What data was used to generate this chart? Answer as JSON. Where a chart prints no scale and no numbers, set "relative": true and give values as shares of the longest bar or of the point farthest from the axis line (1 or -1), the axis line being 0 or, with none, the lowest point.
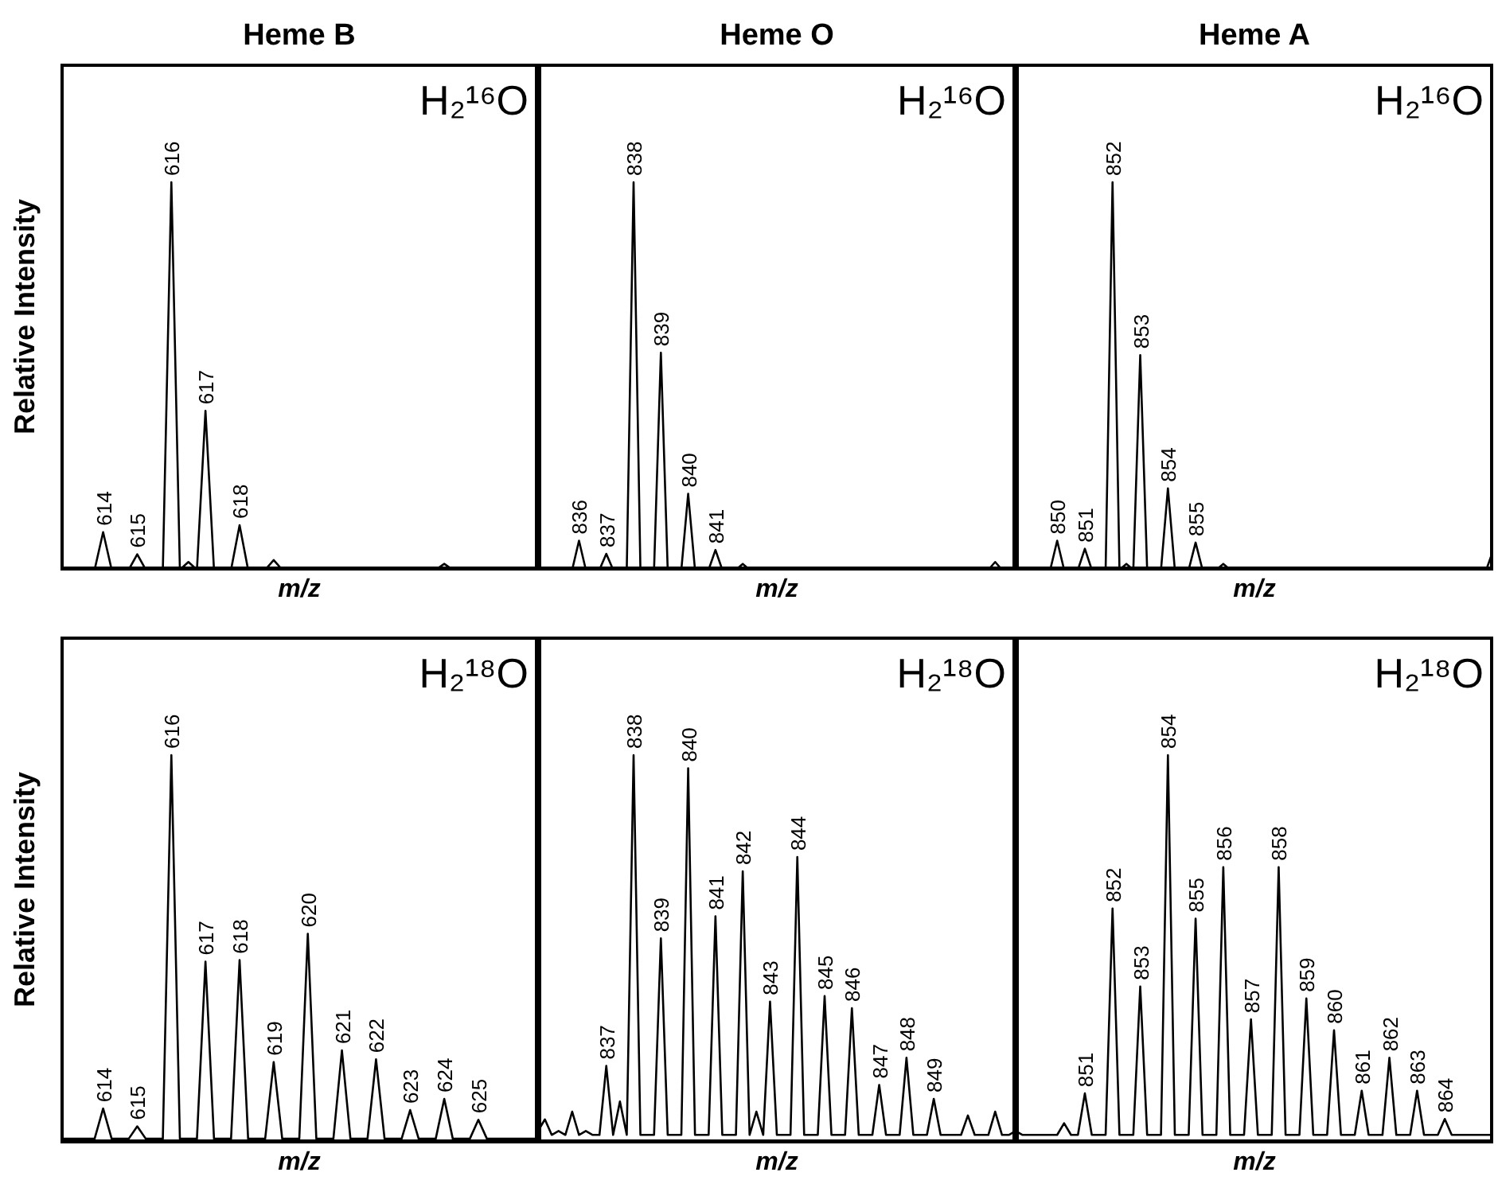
{
  "chart_data": [
    {
      "type": "line",
      "title": "Heme B",
      "xlabel": "m/z",
      "ylabel": "Relative Intensity",
      "relative": true,
      "color": "#000000",
      "annotations": [
        "H₂¹⁶O",
        {
          "text": "614",
          "y": 0.097
        },
        {
          "text": "615",
          "y": 0.04
        },
        {
          "text": "616",
          "y": 1
        },
        {
          "text": "617",
          "y": 0.41
        },
        {
          "text": "618",
          "y": 0.115
        }
      ],
      "categories": [
        null,
        null,
        null,
        null,
        null,
        null,
        null,
        null,
        null,
        null,
        null,
        null,
        null,
        null,
        null,
        null,
        null,
        null,
        null,
        null,
        null,
        null,
        null,
        null,
        null,
        null,
        null,
        null,
        null,
        null,
        null,
        null,
        null,
        null,
        null,
        null,
        null,
        null,
        null,
        null,
        null,
        null,
        null,
        null,
        null,
        null,
        null,
        null,
        null,
        null,
        null,
        null,
        null,
        null,
        null,
        null,
        null
      ],
      "values": [
        0,
        0,
        0,
        0,
        0,
        0.097,
        0,
        0,
        0,
        0.04,
        0,
        0,
        0,
        1,
        0,
        0.02,
        0,
        0.41,
        0,
        0,
        0,
        0.115,
        0,
        0,
        0,
        0.025,
        0,
        0,
        0,
        0,
        0,
        0,
        0,
        0,
        0,
        0,
        0,
        0,
        0,
        0,
        0,
        0,
        0,
        0,
        0,
        0.015,
        0,
        0,
        0,
        0,
        0,
        0,
        0,
        0,
        0,
        0,
        0
      ]
    },
    {
      "type": "line",
      "title": "Heme O",
      "xlabel": "m/z",
      "relative": true,
      "color": "#000000",
      "annotations": [
        "H₂¹⁶O",
        {
          "text": "836",
          "y": 0.075
        },
        {
          "text": "837",
          "y": 0.041
        },
        {
          "text": "838",
          "y": 1
        },
        {
          "text": "839",
          "y": 0.56
        },
        {
          "text": "840",
          "y": 0.196
        },
        {
          "text": "841",
          "y": 0.051
        }
      ],
      "categories": [
        null,
        null,
        null,
        null,
        null,
        null,
        null,
        null,
        null,
        null,
        null,
        null,
        null,
        null,
        null,
        null,
        null,
        null,
        null,
        null,
        null,
        null,
        null,
        null,
        null,
        null,
        null,
        null,
        null,
        null,
        null,
        null,
        null,
        null,
        null,
        null,
        null,
        null,
        null,
        null,
        null,
        null,
        null,
        null,
        null,
        null,
        null,
        null,
        null,
        null,
        null,
        null,
        null,
        null,
        null,
        null,
        null,
        null,
        null,
        null,
        null,
        null,
        null,
        null,
        null,
        null,
        null,
        null,
        null,
        null,
        null
      ],
      "values": [
        0,
        0,
        0,
        0,
        0,
        0,
        0.075,
        0,
        0,
        0,
        0.041,
        0,
        0,
        0,
        1,
        0,
        0,
        0,
        0.56,
        0,
        0,
        0,
        0.196,
        0,
        0,
        0,
        0.051,
        0,
        0,
        0,
        0.015,
        0,
        0,
        0,
        0,
        0,
        0,
        0,
        0,
        0,
        0,
        0,
        0,
        0,
        0,
        0,
        0,
        0,
        0,
        0,
        0,
        0,
        0,
        0,
        0,
        0,
        0,
        0,
        0,
        0,
        0,
        0,
        0,
        0,
        0,
        0,
        0,
        0.02,
        0,
        0,
        0
      ]
    },
    {
      "type": "line",
      "title": "Heme A",
      "xlabel": "m/z",
      "relative": true,
      "color": "#000000",
      "annotations": [
        "H₂¹⁶O",
        {
          "text": "850",
          "y": 0.075
        },
        {
          "text": "851",
          "y": 0.054
        },
        {
          "text": "852",
          "y": 1
        },
        {
          "text": "853",
          "y": 0.554
        },
        {
          "text": "854",
          "y": 0.21
        },
        {
          "text": "855",
          "y": 0.07
        }
      ],
      "categories": [
        null,
        null,
        null,
        null,
        null,
        null,
        null,
        null,
        null,
        null,
        null,
        null,
        null,
        null,
        null,
        null,
        null,
        null,
        null,
        null,
        null,
        null,
        null,
        null,
        null,
        null,
        null,
        null,
        null,
        null,
        null,
        null,
        null,
        null,
        null,
        null,
        null,
        null,
        null,
        null,
        null,
        null,
        null,
        null,
        null,
        null,
        null,
        null,
        null,
        null,
        null,
        null,
        null,
        null,
        null,
        null,
        null,
        null,
        null,
        null,
        null,
        null,
        null,
        null,
        null,
        null,
        null,
        null,
        null,
        null
      ],
      "values": [
        0.01,
        0,
        0,
        0,
        0,
        0,
        0.075,
        0,
        0,
        0,
        0.054,
        0,
        0,
        0,
        1,
        0,
        0.015,
        0,
        0.554,
        0,
        0,
        0,
        0.21,
        0,
        0,
        0,
        0.07,
        0,
        0,
        0,
        0.015,
        0,
        0,
        0,
        0,
        0,
        0,
        0,
        0,
        0,
        0,
        0,
        0,
        0,
        0,
        0,
        0,
        0,
        0,
        0,
        0,
        0,
        0,
        0,
        0,
        0,
        0,
        0,
        0,
        0,
        0,
        0,
        0,
        0,
        0,
        0,
        0,
        0,
        0,
        0.05
      ]
    },
    {
      "type": "line",
      "xlabel": "m/z",
      "ylabel": "Relative Intensity",
      "relative": true,
      "color": "#000000",
      "annotations": [
        "H₂¹⁸O",
        {
          "text": "614",
          "y": 0.088
        },
        {
          "text": "615",
          "y": 0.042
        },
        {
          "text": "616",
          "y": 1
        },
        {
          "text": "617",
          "y": 0.467
        },
        {
          "text": "618",
          "y": 0.471
        },
        {
          "text": "619",
          "y": 0.208
        },
        {
          "text": "620",
          "y": 0.539
        },
        {
          "text": "621",
          "y": 0.238
        },
        {
          "text": "622",
          "y": 0.215
        },
        {
          "text": "623",
          "y": 0.084
        },
        {
          "text": "624",
          "y": 0.113
        },
        {
          "text": "625",
          "y": 0.059
        }
      ],
      "categories": [
        null,
        null,
        null,
        null,
        null,
        null,
        null,
        null,
        null,
        null,
        null,
        null,
        null,
        null,
        null,
        null,
        null,
        null,
        null,
        null,
        null,
        null,
        null,
        null,
        null,
        null,
        null,
        null,
        null,
        null,
        null,
        null,
        null,
        null,
        null,
        null,
        null,
        null,
        null,
        null,
        null,
        null,
        null,
        null,
        null,
        null,
        null,
        null,
        null,
        null,
        null,
        null,
        null,
        null,
        null,
        null,
        null
      ],
      "values": [
        0.01,
        0.01,
        0.01,
        0.01,
        0.01,
        0.088,
        0.01,
        0.01,
        0.01,
        0.042,
        0.01,
        0.01,
        0.01,
        1,
        0.01,
        0.01,
        0.01,
        0.467,
        0.01,
        0.01,
        0.01,
        0.471,
        0.01,
        0.01,
        0.01,
        0.208,
        0.01,
        0.01,
        0.01,
        0.539,
        0.01,
        0.01,
        0.01,
        0.238,
        0.01,
        0.01,
        0.01,
        0.215,
        0.01,
        0.01,
        0.01,
        0.084,
        0.01,
        0.01,
        0.01,
        0.113,
        0.01,
        0.01,
        0.01,
        0.059,
        0.01,
        0.01,
        0.01,
        0.01,
        0.01,
        0.01,
        0.01
      ]
    },
    {
      "type": "line",
      "xlabel": "m/z",
      "relative": true,
      "color": "#000000",
      "annotations": [
        "H₂¹⁸O",
        {
          "text": "837",
          "y": 0.198
        },
        {
          "text": "838",
          "y": 1
        },
        {
          "text": "839",
          "y": 0.527
        },
        {
          "text": "840",
          "y": 0.966
        },
        {
          "text": "841",
          "y": 0.584
        },
        {
          "text": "842",
          "y": 0.7
        },
        {
          "text": "843",
          "y": 0.364
        },
        {
          "text": "844",
          "y": 0.737
        },
        {
          "text": "845",
          "y": 0.378
        },
        {
          "text": "846",
          "y": 0.347
        },
        {
          "text": "847",
          "y": 0.149
        },
        {
          "text": "848",
          "y": 0.219
        },
        {
          "text": "849",
          "y": 0.113
        }
      ],
      "categories": [
        null,
        null,
        null,
        null,
        null,
        null,
        null,
        null,
        null,
        null,
        null,
        null,
        null,
        null,
        null,
        null,
        null,
        null,
        null,
        null,
        null,
        null,
        null,
        null,
        null,
        null,
        null,
        null,
        null,
        null,
        null,
        null,
        null,
        null,
        null,
        null,
        null,
        null,
        null,
        null,
        null,
        null,
        null,
        null,
        null,
        null,
        null,
        null,
        null,
        null,
        null,
        null,
        null,
        null,
        null,
        null,
        null,
        null,
        null,
        null,
        null,
        null,
        null,
        null,
        null,
        null,
        null,
        null,
        null,
        null,
        null
      ],
      "values": [
        0.03,
        0.06,
        0.02,
        0.03,
        0.02,
        0.08,
        0.02,
        0.03,
        0.02,
        0.02,
        0.198,
        0.02,
        0.106,
        0.02,
        1,
        0.02,
        0.02,
        0.02,
        0.527,
        0.02,
        0.02,
        0.02,
        0.966,
        0.02,
        0.02,
        0.02,
        0.584,
        0.02,
        0.02,
        0.02,
        0.7,
        0.02,
        0.08,
        0.02,
        0.364,
        0.02,
        0.02,
        0.02,
        0.737,
        0.02,
        0.02,
        0.02,
        0.378,
        0.02,
        0.02,
        0.02,
        0.347,
        0.02,
        0.02,
        0.02,
        0.149,
        0.02,
        0.02,
        0.02,
        0.219,
        0.02,
        0.02,
        0.02,
        0.113,
        0.02,
        0.02,
        0.02,
        0.02,
        0.07,
        0.02,
        0.02,
        0.02,
        0.08,
        0.02,
        0.02,
        0.03
      ]
    },
    {
      "type": "line",
      "xlabel": "m/z",
      "relative": true,
      "color": "#000000",
      "annotations": [
        "H₂¹⁸O",
        {
          "text": "851",
          "y": 0.127
        },
        {
          "text": "852",
          "y": 0.604
        },
        {
          "text": "853",
          "y": 0.403
        },
        {
          "text": "854",
          "y": 1
        },
        {
          "text": "855",
          "y": 0.578
        },
        {
          "text": "856",
          "y": 0.711
        },
        {
          "text": "857",
          "y": 0.318
        },
        {
          "text": "858",
          "y": 0.711
        },
        {
          "text": "859",
          "y": 0.372
        },
        {
          "text": "860",
          "y": 0.29
        },
        {
          "text": "861",
          "y": 0.134
        },
        {
          "text": "862",
          "y": 0.219
        },
        {
          "text": "863",
          "y": 0.134
        },
        {
          "text": "864",
          "y": 0.061
        }
      ],
      "categories": [
        null,
        null,
        null,
        null,
        null,
        null,
        null,
        null,
        null,
        null,
        null,
        null,
        null,
        null,
        null,
        null,
        null,
        null,
        null,
        null,
        null,
        null,
        null,
        null,
        null,
        null,
        null,
        null,
        null,
        null,
        null,
        null,
        null,
        null,
        null,
        null,
        null,
        null,
        null,
        null,
        null,
        null,
        null,
        null,
        null,
        null,
        null,
        null,
        null,
        null,
        null,
        null,
        null,
        null,
        null,
        null,
        null,
        null,
        null,
        null,
        null,
        null,
        null,
        null,
        null,
        null,
        null,
        null,
        null,
        null
      ],
      "values": [
        0.03,
        0.02,
        0.02,
        0.02,
        0.02,
        0.02,
        0.02,
        0.05,
        0.02,
        0.02,
        0.127,
        0.02,
        0.02,
        0.02,
        0.604,
        0.02,
        0.02,
        0.02,
        0.403,
        0.02,
        0.02,
        0.02,
        1,
        0.02,
        0.02,
        0.02,
        0.578,
        0.02,
        0.02,
        0.02,
        0.711,
        0.02,
        0.02,
        0.02,
        0.318,
        0.02,
        0.02,
        0.02,
        0.711,
        0.02,
        0.02,
        0.02,
        0.372,
        0.02,
        0.02,
        0.02,
        0.29,
        0.02,
        0.02,
        0.02,
        0.134,
        0.02,
        0.02,
        0.02,
        0.219,
        0.02,
        0.02,
        0.02,
        0.134,
        0.02,
        0.02,
        0.02,
        0.061,
        0.02,
        0.02,
        0.02,
        0.02,
        0.02,
        0.02,
        0.02
      ]
    }
  ]
}
